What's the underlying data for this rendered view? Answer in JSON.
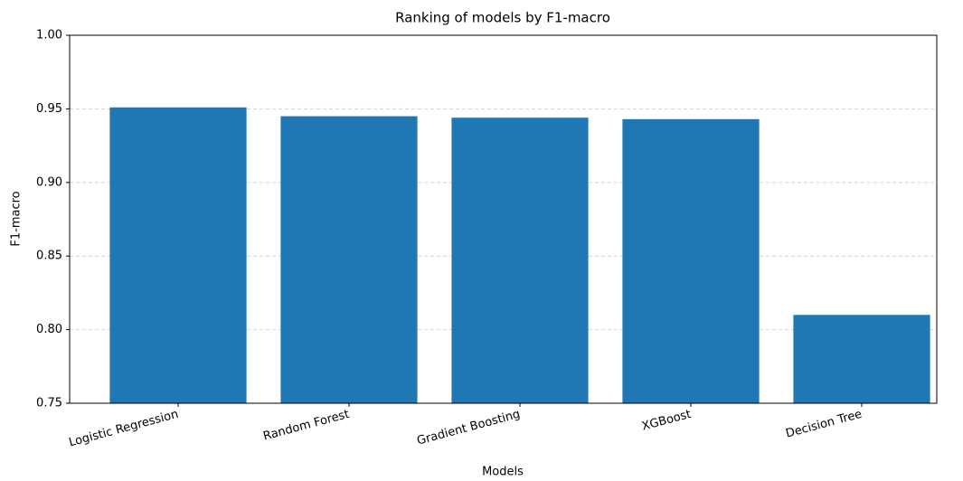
{
  "chart_data": {
    "type": "bar",
    "subtitle": "Ranking of models by F1-macro",
    "x_label": "Models",
    "y_label": "F1-macro",
    "categories": [
      "Logistic Regression",
      "Random Forest",
      "Gradient Boosting",
      "XGBoost",
      "Decision Tree"
    ],
    "values": [
      0.951,
      0.945,
      0.944,
      0.943,
      0.81
    ],
    "color": "#1f77b4",
    "ylim": [
      0.75,
      1.0
    ],
    "yticks": [
      0.75,
      {
        "value": 0.8,
        "label": "0.80"
      },
      0.85,
      {
        "value": 0.9,
        "label": "0.90"
      },
      0.95,
      {
        "value": 1.0,
        "label": "1.00"
      }
    ],
    "grid": true
  }
}
